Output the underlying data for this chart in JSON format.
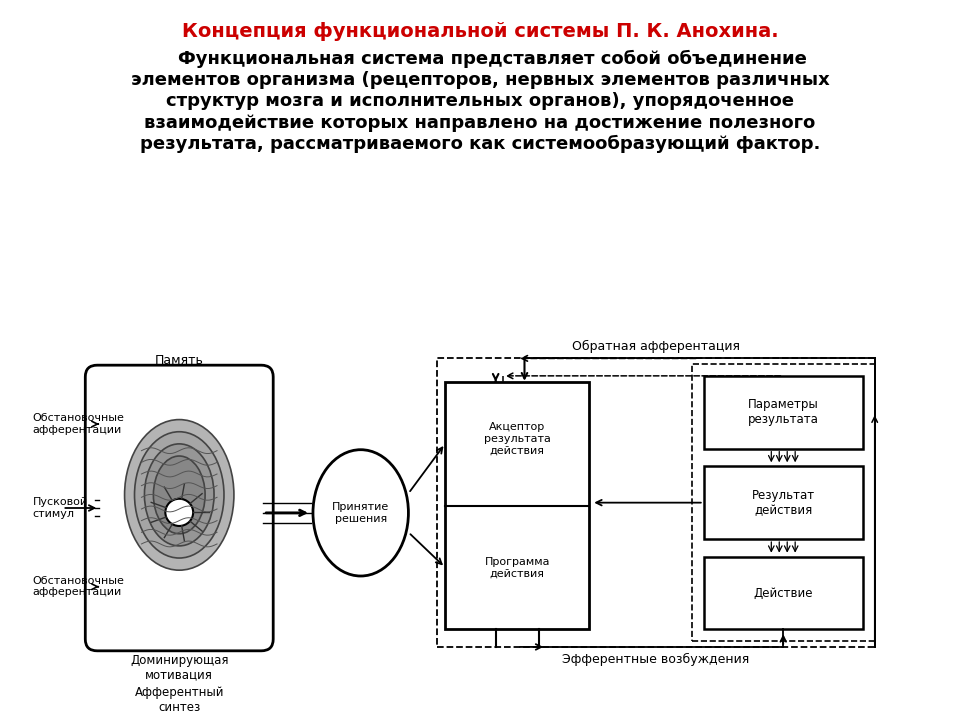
{
  "title": "Концепция функциональной системы П. К. Анохина.",
  "title_color": "#CC0000",
  "title_fontsize": 14,
  "body_lines": [
    "    Функциональная система представляет собой объединение",
    "элементов организма (рецепторов, нервных элементов различных",
    "структур мозга и исполнительных органов), упорядоченное",
    "взаимодействие которых направлено на достижение полезного",
    "результата, рассматриваемого как системообразующий фактор."
  ],
  "body_fontsize": 13,
  "bg_color": "#ffffff",
  "label_pamyat": "Память",
  "label_obst_aff1": "Обстановочные\nафферентации",
  "label_puskovoy": "Пусковой\nстимул",
  "label_obst_aff2": "Обстановочные\nафферентации",
  "label_dom_motiv": "Доминирующая\nмотивация",
  "label_aff_sintez": "Афферентный\nсинтез",
  "label_prinyatie": "Принятие\nрешения",
  "label_akseptor": "Акцептор\nрезультата\nдействия",
  "label_programma": "Программа\nдействия",
  "label_parametry": "Параметры\nрезультата",
  "label_rezultat": "Результат\nдействия",
  "label_deystvie": "Действие",
  "label_obr_aff": "Обратная афферентация",
  "label_eff_vozb": "Эфферентные возбуждения"
}
